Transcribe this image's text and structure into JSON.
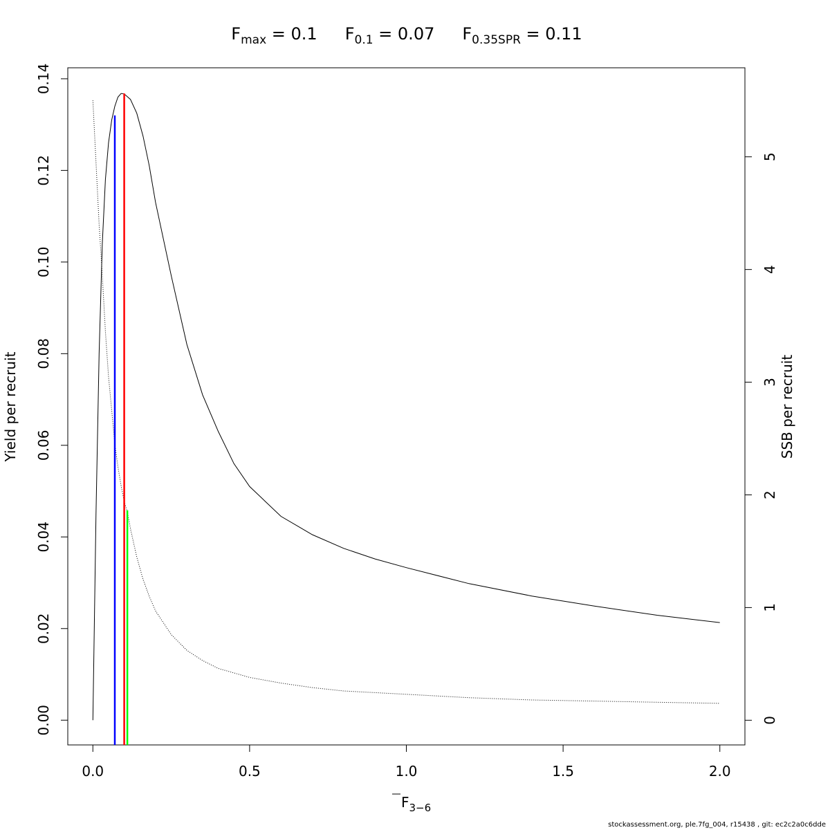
{
  "title": {
    "fmax": {
      "base": "F",
      "sub": "max",
      "rest": " = 0.1"
    },
    "f01": {
      "base": "F",
      "sub": "0.1",
      "rest": " = 0.07"
    },
    "fspr": {
      "base": "F",
      "sub": "0.35SPR",
      "rest": " = 0.11"
    }
  },
  "footer": "stockassessment.org, ple.7fg_004, r15438 , git: ec2c2a0c6dde",
  "chart_data": {
    "type": "line",
    "xlabel": {
      "base": "F",
      "sub": "3−6"
    },
    "ylabel_left": "Yield per recruit",
    "ylabel_right": "SSB per recruit",
    "xlim": [
      -0.08,
      2.08
    ],
    "ylim_left": [
      -0.0054,
      0.1424
    ],
    "ylim_right": [
      -0.219,
      5.79
    ],
    "x_ticks": [
      "0.0",
      "0.5",
      "1.0",
      "1.5",
      "2.0"
    ],
    "y_left_ticks": [
      "0.00",
      "0.02",
      "0.04",
      "0.06",
      "0.08",
      "0.10",
      "0.12",
      "0.14"
    ],
    "y_right_ticks": [
      "0",
      "1",
      "2",
      "3",
      "4",
      "5"
    ],
    "grid": false,
    "series": [
      {
        "axis": "left",
        "style": "solid",
        "color": "#000000",
        "x": [
          0,
          0.01,
          0.02,
          0.03,
          0.04,
          0.05,
          0.06,
          0.07,
          0.08,
          0.09,
          0.1,
          0.12,
          0.14,
          0.16,
          0.18,
          0.2,
          0.25,
          0.3,
          0.35,
          0.4,
          0.45,
          0.5,
          0.6,
          0.7,
          0.8,
          0.9,
          1.0,
          1.2,
          1.4,
          1.6,
          1.8,
          2.0
        ],
        "y": [
          0.0,
          0.045,
          0.08,
          0.104,
          0.118,
          0.126,
          0.131,
          0.134,
          0.136,
          0.1368,
          0.1367,
          0.1355,
          0.1325,
          0.1275,
          0.121,
          0.113,
          0.097,
          0.082,
          0.071,
          0.063,
          0.056,
          0.051,
          0.0445,
          0.0405,
          0.0375,
          0.0352,
          0.0333,
          0.0298,
          0.0271,
          0.0249,
          0.0229,
          0.0213
        ]
      },
      {
        "axis": "right",
        "style": "dotted",
        "color": "#000000",
        "x": [
          0,
          0.01,
          0.02,
          0.03,
          0.04,
          0.05,
          0.06,
          0.07,
          0.08,
          0.09,
          0.1,
          0.11,
          0.12,
          0.14,
          0.16,
          0.18,
          0.2,
          0.25,
          0.3,
          0.35,
          0.4,
          0.5,
          0.6,
          0.7,
          0.8,
          1.0,
          1.2,
          1.4,
          1.6,
          1.8,
          2.0
        ],
        "y": [
          5.5,
          4.95,
          4.4,
          3.95,
          3.45,
          3.05,
          2.75,
          2.45,
          2.25,
          2.08,
          1.94,
          1.85,
          1.7,
          1.45,
          1.25,
          1.1,
          0.97,
          0.76,
          0.62,
          0.53,
          0.46,
          0.38,
          0.33,
          0.29,
          0.26,
          0.23,
          0.2,
          0.18,
          0.17,
          0.16,
          0.15
        ]
      }
    ],
    "reference_lines": [
      {
        "name": "F0.1",
        "x": 0.07,
        "y_top": 0.132,
        "color": "#0000ff"
      },
      {
        "name": "Fmax",
        "x": 0.1,
        "y_top": 0.1368,
        "color": "#ff0000"
      },
      {
        "name": "F0.35SPR",
        "x": 0.11,
        "y_top": 0.0458,
        "color": "#00ff00"
      }
    ]
  }
}
